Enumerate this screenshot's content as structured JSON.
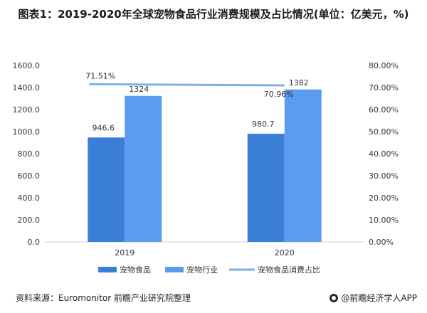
{
  "title": "图表1：2019-2020年全球宠物食品行业消费规模及占比情况(单位：亿美元，%)",
  "source_text": "资料来源：Euromonitor 前瞻产业研究院整理",
  "brand_text": "@前瞻经济学人APP",
  "colors": {
    "bar_food": "#3b7ed8",
    "bar_industry": "#5b9bf0",
    "line_share": "#7fb0e6",
    "axis": "#d0d0d0",
    "text": "#333333"
  },
  "chart_data": {
    "type": "bar",
    "categories": [
      "2019",
      "2020"
    ],
    "series": [
      {
        "name": "宠物食品",
        "type": "bar",
        "axis": "left",
        "values": [
          946.6,
          980.7
        ],
        "labels": [
          "946.6",
          "980.7"
        ]
      },
      {
        "name": "宠物行业",
        "type": "bar",
        "axis": "left",
        "values": [
          1324,
          1382
        ],
        "labels": [
          "1324",
          "1382"
        ]
      },
      {
        "name": "宠物食品消费占比",
        "type": "line",
        "axis": "right",
        "values": [
          71.51,
          70.96
        ],
        "labels": [
          "71.51%",
          "70.96%"
        ]
      }
    ],
    "ylim_left": [
      0,
      1600
    ],
    "yticks_left": [
      "0.0",
      "200.0",
      "400.0",
      "600.0",
      "800.0",
      "1000.0",
      "1200.0",
      "1400.0",
      "1600.0"
    ],
    "ylim_right": [
      0,
      80
    ],
    "yticks_right": [
      "0.00%",
      "10.00%",
      "20.00%",
      "30.00%",
      "40.00%",
      "50.00%",
      "60.00%",
      "70.00%",
      "80.00%"
    ],
    "legend_position": "bottom",
    "grid": false
  }
}
